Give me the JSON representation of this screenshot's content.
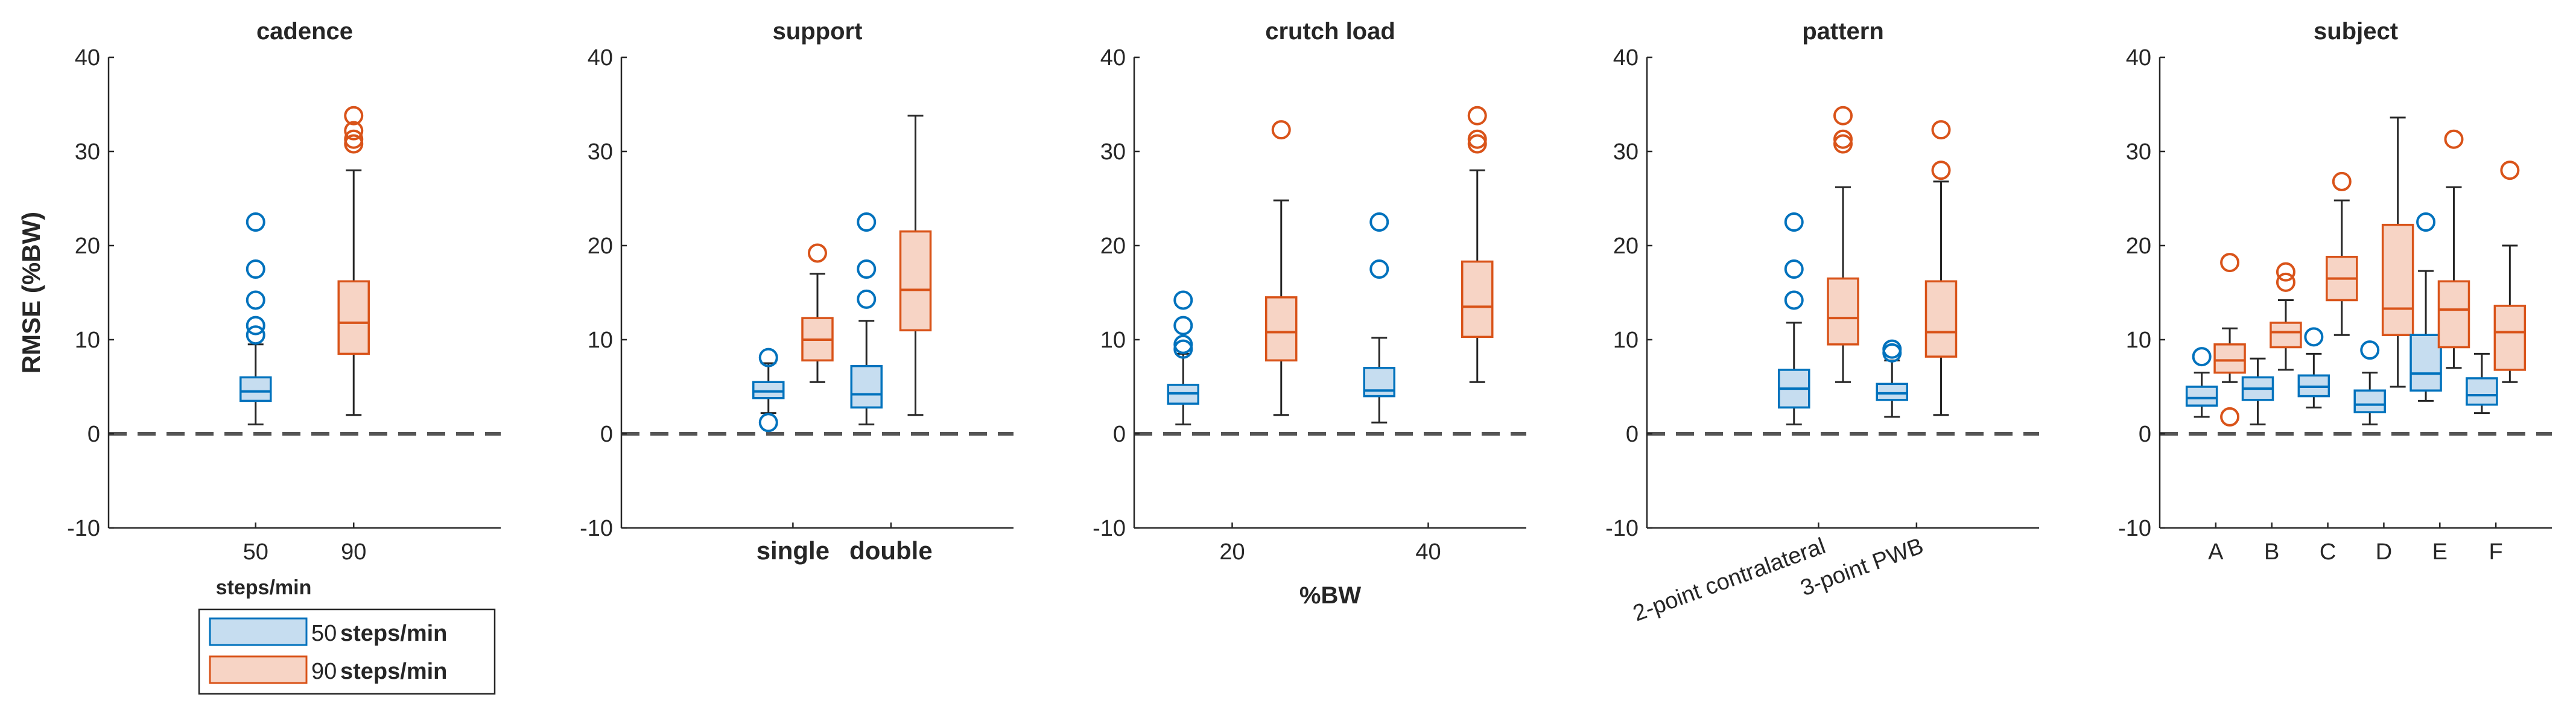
{
  "colors": {
    "blue": "#0072BD",
    "blue_fill": "#C6DDF0",
    "orange": "#D95319",
    "orange_fill": "#F7D4C5",
    "axis": "#262626",
    "zero_line": "#555555"
  },
  "legend": {
    "entries": [
      {
        "num": "50",
        "unit": "steps/min",
        "color_key": "blue"
      },
      {
        "num": "90",
        "unit": "steps/min",
        "color_key": "orange"
      }
    ]
  },
  "chart_data": [
    {
      "type": "box",
      "title": "cadence",
      "ylabel": "RMSE (%BW)",
      "xlabel": "steps/min",
      "ylim": [
        -10,
        40
      ],
      "yticks": [
        -10,
        0,
        10,
        20,
        30,
        40
      ],
      "xlim": [
        0,
        4
      ],
      "xticks": [
        {
          "pos": 1.5,
          "label": "50"
        },
        {
          "pos": 2.5,
          "label": "90"
        }
      ],
      "tick_bold": false,
      "tick_rotate": false,
      "boxes": [
        {
          "x": 1.5,
          "group": "blue",
          "whisker_low": 1,
          "q1": 3.5,
          "median": 4.5,
          "q3": 6,
          "whisker_high": 9.5,
          "outliers": [
            10.5,
            11.5,
            14.2,
            17.5,
            22.5
          ]
        },
        {
          "x": 2.5,
          "group": "orange",
          "whisker_low": 2,
          "q1": 8.5,
          "median": 11.8,
          "q3": 16.2,
          "whisker_high": 28,
          "outliers": [
            30.8,
            31.3,
            32.2,
            33.8
          ]
        }
      ]
    },
    {
      "type": "box",
      "title": "support",
      "ylabel": "",
      "xlabel": "",
      "ylim": [
        -10,
        40
      ],
      "yticks": [
        -10,
        0,
        10,
        20,
        30,
        40
      ],
      "xlim": [
        0,
        8
      ],
      "xticks": [
        {
          "pos": 3.5,
          "label": "single"
        },
        {
          "pos": 5.5,
          "label": "double"
        }
      ],
      "tick_bold": true,
      "tick_rotate": false,
      "boxes": [
        {
          "x": 3,
          "group": "blue",
          "whisker_low": 2.2,
          "q1": 3.8,
          "median": 4.5,
          "q3": 5.5,
          "whisker_high": 7.5,
          "outliers": [
            1.2,
            8.1
          ]
        },
        {
          "x": 4,
          "group": "orange",
          "whisker_low": 5.5,
          "q1": 7.8,
          "median": 10,
          "q3": 12.3,
          "whisker_high": 17,
          "outliers": [
            19.2
          ]
        },
        {
          "x": 5,
          "group": "blue",
          "whisker_low": 1,
          "q1": 2.8,
          "median": 4.2,
          "q3": 7.2,
          "whisker_high": 12,
          "outliers": [
            14.3,
            17.5,
            22.5
          ]
        },
        {
          "x": 6,
          "group": "orange",
          "whisker_low": 2,
          "q1": 11,
          "median": 15.3,
          "q3": 21.5,
          "whisker_high": 33.8,
          "outliers": []
        }
      ]
    },
    {
      "type": "box",
      "title": "crutch load",
      "ylabel": "",
      "xlabel": "%BW",
      "ylim": [
        -10,
        40
      ],
      "yticks": [
        -10,
        0,
        10,
        20,
        30,
        40
      ],
      "xlim": [
        10,
        50
      ],
      "xticks": [
        {
          "pos": 20,
          "label": "20"
        },
        {
          "pos": 40,
          "label": "40"
        }
      ],
      "tick_bold": false,
      "tick_rotate": false,
      "boxes": [
        {
          "x": 15,
          "group": "blue",
          "whisker_low": 1,
          "q1": 3.2,
          "median": 4.3,
          "q3": 5.2,
          "whisker_high": 8.5,
          "outliers": [
            9,
            9.5,
            11.5,
            14.2
          ]
        },
        {
          "x": 25,
          "group": "orange",
          "whisker_low": 2,
          "q1": 7.8,
          "median": 10.8,
          "q3": 14.5,
          "whisker_high": 24.8,
          "outliers": [
            32.3
          ]
        },
        {
          "x": 35,
          "group": "blue",
          "whisker_low": 1.2,
          "q1": 4,
          "median": 4.6,
          "q3": 7,
          "whisker_high": 10.2,
          "outliers": [
            17.5,
            22.5
          ]
        },
        {
          "x": 45,
          "group": "orange",
          "whisker_low": 5.5,
          "q1": 10.3,
          "median": 13.5,
          "q3": 18.3,
          "whisker_high": 28,
          "outliers": [
            30.8,
            31.3,
            33.8
          ]
        }
      ]
    },
    {
      "type": "box",
      "title": "pattern",
      "ylabel": "",
      "xlabel": "",
      "ylim": [
        -10,
        40
      ],
      "yticks": [
        -10,
        0,
        10,
        20,
        30,
        40
      ],
      "xlim": [
        0,
        8
      ],
      "xticks": [
        {
          "pos": 3.5,
          "label": "2-point contralateral"
        },
        {
          "pos": 5.5,
          "label": "3-point PWB"
        }
      ],
      "tick_bold": false,
      "tick_rotate": true,
      "boxes": [
        {
          "x": 3,
          "group": "blue",
          "whisker_low": 1,
          "q1": 2.8,
          "median": 4.8,
          "q3": 6.8,
          "whisker_high": 11.8,
          "outliers": [
            14.2,
            17.5,
            22.5
          ]
        },
        {
          "x": 4,
          "group": "orange",
          "whisker_low": 5.5,
          "q1": 9.5,
          "median": 12.3,
          "q3": 16.5,
          "whisker_high": 26.2,
          "outliers": [
            30.8,
            31.3,
            33.8
          ]
        },
        {
          "x": 5,
          "group": "blue",
          "whisker_low": 1.8,
          "q1": 3.6,
          "median": 4.3,
          "q3": 5.3,
          "whisker_high": 7.8,
          "outliers": [
            8.6,
            9
          ]
        },
        {
          "x": 6,
          "group": "orange",
          "whisker_low": 2,
          "q1": 8.2,
          "median": 10.8,
          "q3": 16.2,
          "whisker_high": 26.8,
          "outliers": [
            28,
            32.3
          ]
        }
      ]
    },
    {
      "type": "box",
      "title": "subject",
      "ylabel": "",
      "xlabel": "",
      "ylim": [
        -10,
        40
      ],
      "yticks": [
        -10,
        0,
        10,
        20,
        30,
        40
      ],
      "xlim": [
        0,
        7
      ],
      "xticks": [
        {
          "pos": 1,
          "label": "A"
        },
        {
          "pos": 2,
          "label": "B"
        },
        {
          "pos": 3,
          "label": "C"
        },
        {
          "pos": 4,
          "label": "D"
        },
        {
          "pos": 5,
          "label": "E"
        },
        {
          "pos": 6,
          "label": "F"
        }
      ],
      "tick_bold": false,
      "tick_rotate": false,
      "boxes": [
        {
          "x": 0.75,
          "group": "blue",
          "whisker_low": 1.8,
          "q1": 3,
          "median": 3.8,
          "q3": 5,
          "whisker_high": 6.5,
          "outliers": [
            8.2
          ]
        },
        {
          "x": 1.25,
          "group": "orange",
          "whisker_low": 5.5,
          "q1": 6.5,
          "median": 7.8,
          "q3": 9.5,
          "whisker_high": 11.2,
          "outliers": [
            1.8,
            18.2
          ]
        },
        {
          "x": 1.75,
          "group": "blue",
          "whisker_low": 1,
          "q1": 3.6,
          "median": 4.8,
          "q3": 6,
          "whisker_high": 8,
          "outliers": []
        },
        {
          "x": 2.25,
          "group": "orange",
          "whisker_low": 6.8,
          "q1": 9.2,
          "median": 10.8,
          "q3": 11.8,
          "whisker_high": 14.2,
          "outliers": [
            16.1,
            17.2
          ]
        },
        {
          "x": 2.75,
          "group": "blue",
          "whisker_low": 2.8,
          "q1": 4,
          "median": 5,
          "q3": 6.2,
          "whisker_high": 8.5,
          "outliers": [
            10.3
          ]
        },
        {
          "x": 3.25,
          "group": "orange",
          "whisker_low": 10.5,
          "q1": 14.2,
          "median": 16.5,
          "q3": 18.8,
          "whisker_high": 24.8,
          "outliers": [
            26.8
          ]
        },
        {
          "x": 3.75,
          "group": "blue",
          "whisker_low": 1,
          "q1": 2.3,
          "median": 3.1,
          "q3": 4.6,
          "whisker_high": 6.5,
          "outliers": [
            8.9
          ]
        },
        {
          "x": 4.25,
          "group": "orange",
          "whisker_low": 5,
          "q1": 10.5,
          "median": 13.3,
          "q3": 22.2,
          "whisker_high": 33.6,
          "outliers": []
        },
        {
          "x": 4.75,
          "group": "blue",
          "whisker_low": 3.5,
          "q1": 4.6,
          "median": 6.4,
          "q3": 10.5,
          "whisker_high": 17.3,
          "outliers": [
            22.5
          ]
        },
        {
          "x": 5.25,
          "group": "orange",
          "whisker_low": 7,
          "q1": 9.2,
          "median": 13.2,
          "q3": 16.2,
          "whisker_high": 26.2,
          "outliers": [
            31.3
          ]
        },
        {
          "x": 5.75,
          "group": "blue",
          "whisker_low": 2.2,
          "q1": 3.1,
          "median": 4.1,
          "q3": 5.9,
          "whisker_high": 8.5,
          "outliers": []
        },
        {
          "x": 6.25,
          "group": "orange",
          "whisker_low": 5.5,
          "q1": 6.8,
          "median": 10.8,
          "q3": 13.6,
          "whisker_high": 20,
          "outliers": [
            28
          ]
        }
      ]
    }
  ]
}
